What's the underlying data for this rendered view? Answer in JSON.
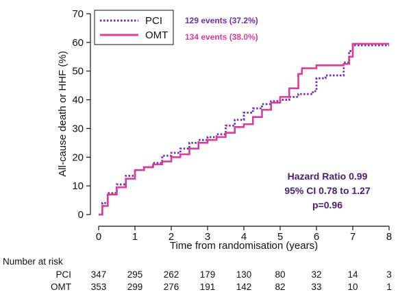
{
  "chart_data": {
    "type": "line",
    "subtype": "kaplan-meier cumulative incidence",
    "xlabel": "Time from randomisation (years)",
    "ylabel": "All-cause death or HHF (%)",
    "xlim": [
      0,
      8
    ],
    "ylim": [
      0,
      70
    ],
    "x_ticks": [
      "0",
      "1",
      "2",
      "3",
      "4",
      "5",
      "6",
      "7",
      "8"
    ],
    "y_ticks": [
      "0",
      "10",
      "20",
      "30",
      "40",
      "50",
      "60",
      "70"
    ],
    "legend_position": "top-left",
    "series": [
      {
        "name": "PCI",
        "style": "dotted",
        "color": "#6a2fb5",
        "events_label": "129 events (37.2%)",
        "points": [
          [
            0,
            0
          ],
          [
            0.1,
            4
          ],
          [
            0.25,
            7.5
          ],
          [
            0.5,
            10.5
          ],
          [
            0.75,
            13.5
          ],
          [
            1,
            15.5
          ],
          [
            1.25,
            16.5
          ],
          [
            1.5,
            18
          ],
          [
            1.75,
            20.5
          ],
          [
            2,
            21.5
          ],
          [
            2.25,
            23
          ],
          [
            2.5,
            25
          ],
          [
            2.75,
            26
          ],
          [
            3,
            27
          ],
          [
            3.25,
            28
          ],
          [
            3.5,
            31
          ],
          [
            3.75,
            33
          ],
          [
            4,
            35.5
          ],
          [
            4.25,
            37
          ],
          [
            4.5,
            38.5
          ],
          [
            4.75,
            39.5
          ],
          [
            5,
            40
          ],
          [
            5.25,
            41
          ],
          [
            5.5,
            42
          ],
          [
            5.9,
            43
          ],
          [
            6,
            47.5
          ],
          [
            6.25,
            48.5
          ],
          [
            6.6,
            48.5
          ],
          [
            6.75,
            53
          ],
          [
            6.9,
            57
          ],
          [
            7,
            59
          ],
          [
            7.5,
            59
          ],
          [
            8,
            59
          ]
        ]
      },
      {
        "name": "OMT",
        "style": "solid",
        "color": "#d93d9a",
        "events_label": "134 events (38.0%)",
        "points": [
          [
            0,
            0
          ],
          [
            0.1,
            3
          ],
          [
            0.25,
            7
          ],
          [
            0.5,
            9.5
          ],
          [
            0.75,
            12.5
          ],
          [
            1,
            15.5
          ],
          [
            1.25,
            16.5
          ],
          [
            1.5,
            17.5
          ],
          [
            1.75,
            18.5
          ],
          [
            2,
            20
          ],
          [
            2.25,
            21
          ],
          [
            2.5,
            23
          ],
          [
            2.75,
            25
          ],
          [
            3,
            26
          ],
          [
            3.25,
            27
          ],
          [
            3.5,
            28.5
          ],
          [
            3.75,
            30.5
          ],
          [
            4,
            31.5
          ],
          [
            4.25,
            34
          ],
          [
            4.5,
            36.5
          ],
          [
            4.75,
            39
          ],
          [
            5,
            41
          ],
          [
            5.25,
            44
          ],
          [
            5.5,
            49
          ],
          [
            5.6,
            51
          ],
          [
            5.75,
            51
          ],
          [
            6,
            52
          ],
          [
            6.5,
            52
          ],
          [
            6.75,
            52.5
          ],
          [
            6.9,
            55
          ],
          [
            7,
            59.5
          ],
          [
            7.5,
            59.5
          ],
          [
            8,
            59.5
          ]
        ]
      }
    ],
    "annotation": {
      "lines": [
        "Hazard Ratio 0.99",
        "95% CI 0.78 to 1.27",
        "p=0.96"
      ],
      "color": "#4a1e6e"
    },
    "risk_table": {
      "title": "Number at risk",
      "rows": [
        {
          "label": "PCI",
          "values": [
            "347",
            "295",
            "262",
            "179",
            "130",
            "80",
            "32",
            "14",
            "3"
          ]
        },
        {
          "label": "OMT",
          "values": [
            "353",
            "299",
            "276",
            "191",
            "142",
            "82",
            "33",
            "10",
            "1"
          ]
        }
      ]
    }
  }
}
